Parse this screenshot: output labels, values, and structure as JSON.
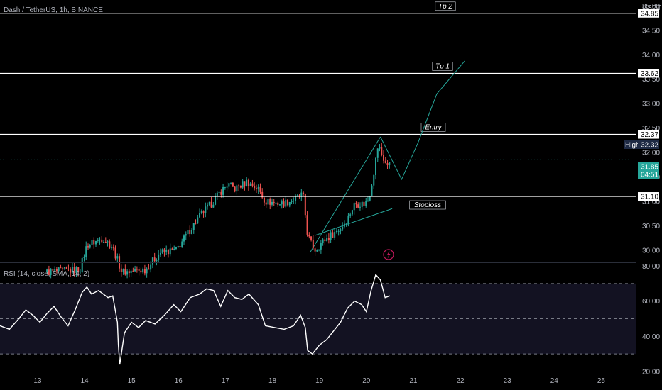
{
  "header": {
    "symbol_label": "Dash / TetherUS, 1h, BINANCE",
    "currency": "USDT"
  },
  "indicator": {
    "label": "RSI (14, close, SMA, 14, 2)"
  },
  "price_tags": {
    "high_label": "High",
    "high_value": "32.32",
    "current_price": "31.85",
    "countdown": "04:51"
  },
  "colors": {
    "background": "#000000",
    "candle_up": "#26a69a",
    "candle_down": "#ef5350",
    "level_line": "#ffffff",
    "projection": "#26a69a",
    "rsi_line": "#ffffff",
    "rsi_band": "#131222",
    "current_tag": "#26a69a",
    "high_tag": "#1e2a44"
  },
  "chart_data": [
    {
      "type": "candlestick",
      "title": "Dash / TetherUS, 1h, BINANCE",
      "y_unit": "USDT",
      "ylim": [
        29.75,
        35.05
      ],
      "y_ticks": [
        "35.00",
        "34.50",
        "34.00",
        "33.50",
        "33.00",
        "32.50",
        "32.00",
        "31.50",
        "31.00",
        "30.50",
        "30.00"
      ],
      "x_ticks": [
        "13",
        "14",
        "15",
        "16",
        "17",
        "18",
        "19",
        "20",
        "21",
        "22",
        "23",
        "24",
        "25"
      ],
      "x_tick_days": [
        13,
        14,
        15,
        16,
        17,
        18,
        19,
        20,
        21,
        22,
        23,
        24,
        25
      ],
      "x_range_days": [
        12.2,
        25.75
      ],
      "levels": [
        {
          "label": "Tp 2",
          "value": 34.85
        },
        {
          "label": "Tp 1",
          "value": 33.62
        },
        {
          "label": "Entry",
          "value": 32.37
        },
        {
          "label": "Stoploss",
          "value": 31.1
        }
      ],
      "level_tags": [
        "34.85",
        "33.62",
        "32.37",
        "31.10"
      ],
      "current_price": 31.85,
      "high": 32.32,
      "series_points": [
        [
          13.2,
          29.55
        ],
        [
          13.9,
          29.6
        ],
        [
          14.05,
          30.1
        ],
        [
          14.4,
          30.25
        ],
        [
          14.6,
          30.05
        ],
        [
          14.8,
          29.55
        ],
        [
          15.3,
          29.6
        ],
        [
          15.6,
          29.95
        ],
        [
          15.95,
          30.0
        ],
        [
          16.2,
          30.35
        ],
        [
          16.45,
          30.7
        ],
        [
          16.7,
          30.95
        ],
        [
          16.9,
          31.2
        ],
        [
          17.05,
          31.35
        ],
        [
          17.2,
          31.25
        ],
        [
          17.45,
          31.4
        ],
        [
          17.7,
          31.25
        ],
        [
          17.85,
          31.0
        ],
        [
          18.2,
          30.95
        ],
        [
          18.5,
          31.05
        ],
        [
          18.65,
          31.15
        ],
        [
          18.75,
          30.3
        ],
        [
          18.9,
          30.0
        ],
        [
          19.1,
          30.2
        ],
        [
          19.3,
          30.35
        ],
        [
          19.45,
          30.45
        ],
        [
          19.6,
          30.65
        ],
        [
          19.75,
          30.95
        ],
        [
          19.95,
          30.95
        ],
        [
          20.05,
          31.05
        ],
        [
          20.15,
          31.55
        ],
        [
          20.25,
          32.15
        ],
        [
          20.35,
          31.9
        ],
        [
          20.45,
          31.7
        ],
        [
          20.5,
          31.85
        ]
      ],
      "projection_points": [
        [
          20.3,
          32.32
        ],
        [
          20.75,
          31.45
        ],
        [
          21.1,
          32.2
        ],
        [
          21.5,
          33.2
        ],
        [
          22.1,
          33.88
        ]
      ],
      "wedge_lines": [
        [
          [
            18.8,
            29.95
          ],
          [
            20.3,
            32.32
          ]
        ],
        [
          [
            18.9,
            30.3
          ],
          [
            20.55,
            30.85
          ]
        ]
      ]
    },
    {
      "type": "line",
      "title": "RSI (14, close, SMA, 14, 2)",
      "ylim": [
        20,
        80
      ],
      "y_ticks": [
        "80.00",
        "60.00",
        "40.00",
        "20.00"
      ],
      "bands": [
        30,
        50,
        70
      ],
      "series": [
        {
          "name": "RSI",
          "points": [
            [
              12.2,
              46
            ],
            [
              12.4,
              44
            ],
            [
              12.6,
              50
            ],
            [
              12.75,
              55
            ],
            [
              12.9,
              52
            ],
            [
              13.05,
              48
            ],
            [
              13.2,
              53
            ],
            [
              13.35,
              57
            ],
            [
              13.5,
              51
            ],
            [
              13.65,
              46
            ],
            [
              13.8,
              55
            ],
            [
              13.95,
              65
            ],
            [
              14.05,
              68
            ],
            [
              14.15,
              64
            ],
            [
              14.3,
              66
            ],
            [
              14.5,
              62
            ],
            [
              14.6,
              63
            ],
            [
              14.7,
              48
            ],
            [
              14.72,
              35
            ],
            [
              14.75,
              24
            ],
            [
              14.85,
              42
            ],
            [
              15.0,
              48
            ],
            [
              15.15,
              45
            ],
            [
              15.3,
              49
            ],
            [
              15.5,
              47
            ],
            [
              15.7,
              52
            ],
            [
              15.9,
              58
            ],
            [
              16.05,
              54
            ],
            [
              16.25,
              62
            ],
            [
              16.45,
              64
            ],
            [
              16.6,
              67
            ],
            [
              16.75,
              66
            ],
            [
              16.9,
              57
            ],
            [
              17.05,
              66
            ],
            [
              17.2,
              62
            ],
            [
              17.35,
              61
            ],
            [
              17.5,
              64
            ],
            [
              17.7,
              58
            ],
            [
              17.85,
              46
            ],
            [
              18.05,
              45
            ],
            [
              18.25,
              44
            ],
            [
              18.45,
              46
            ],
            [
              18.6,
              52
            ],
            [
              18.7,
              45
            ],
            [
              18.75,
              32
            ],
            [
              18.85,
              30
            ],
            [
              19.0,
              35
            ],
            [
              19.15,
              38
            ],
            [
              19.3,
              43
            ],
            [
              19.45,
              48
            ],
            [
              19.6,
              56
            ],
            [
              19.75,
              60
            ],
            [
              19.9,
              58
            ],
            [
              20.0,
              54
            ],
            [
              20.1,
              66
            ],
            [
              20.2,
              75
            ],
            [
              20.3,
              72
            ],
            [
              20.4,
              62
            ],
            [
              20.5,
              63
            ]
          ]
        }
      ]
    }
  ]
}
